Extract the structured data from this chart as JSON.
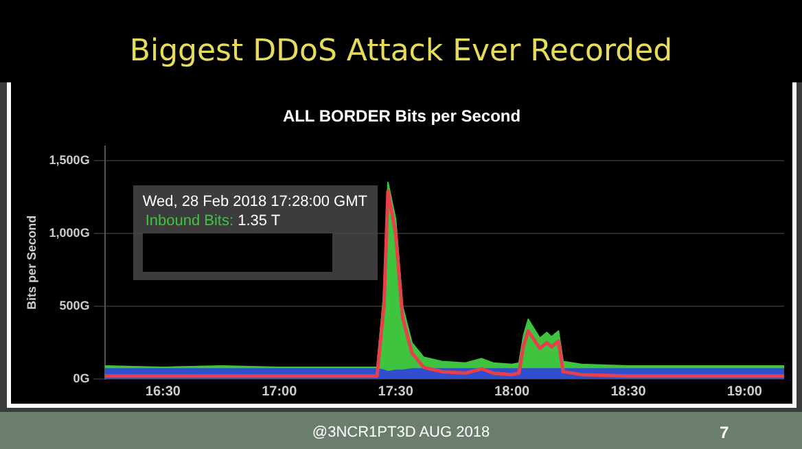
{
  "chart_data": {
    "type": "area",
    "title": "Biggest DDoS Attack Ever Recorded",
    "subtitle": "ALL BORDER Bits per Second",
    "ylabel": "Bits per Second",
    "x": [
      16.25,
      16.5,
      16.75,
      17.0,
      17.25,
      17.42,
      17.45,
      17.467,
      17.5,
      17.53,
      17.57,
      17.62,
      17.7,
      17.8,
      17.87,
      17.92,
      18.0,
      18.03,
      18.05,
      18.07,
      18.12,
      18.15,
      18.17,
      18.2,
      18.22,
      18.3,
      18.5,
      18.75,
      19.0,
      19.17
    ],
    "series": [
      {
        "color": "#3ec43e",
        "values": [
          90,
          80,
          90,
          80,
          80,
          80,
          600,
          1350,
          1100,
          500,
          250,
          150,
          120,
          110,
          140,
          110,
          100,
          110,
          300,
          410,
          280,
          320,
          290,
          330,
          120,
          100,
          90,
          90,
          90,
          90
        ]
      },
      {
        "color": "#2f4fd0",
        "values": [
          70,
          70,
          70,
          70,
          70,
          70,
          60,
          50,
          60,
          60,
          70,
          70,
          70,
          70,
          70,
          70,
          70,
          70,
          70,
          70,
          70,
          70,
          70,
          70,
          70,
          70,
          70,
          70,
          70,
          70
        ]
      },
      {
        "type": "line",
        "color": "#e8404a",
        "values": [
          20,
          20,
          20,
          20,
          20,
          20,
          500,
          1290,
          1000,
          420,
          180,
          80,
          50,
          40,
          70,
          40,
          30,
          40,
          230,
          330,
          210,
          250,
          220,
          260,
          50,
          30,
          20,
          20,
          20,
          20
        ]
      }
    ],
    "xlim": [
      16.25,
      19.17
    ],
    "xticks": [
      {
        "value": 16.5,
        "label": "16:30"
      },
      {
        "value": 17,
        "label": "17:00"
      },
      {
        "value": 17.5,
        "label": "17:30"
      },
      {
        "value": 18,
        "label": "18:00"
      },
      {
        "value": 18.5,
        "label": "18:30"
      },
      {
        "value": 19,
        "label": "19:00"
      }
    ],
    "ylim": [
      0,
      1600
    ],
    "yticks": [
      {
        "value": 0,
        "label": "0G"
      },
      {
        "value": 500,
        "label": "500G"
      },
      {
        "value": 1000,
        "label": "1,000G"
      },
      {
        "value": 1500,
        "label": "1,500G"
      }
    ],
    "grid": "y",
    "annotations": [
      {
        "text": "Wed, 28 Feb 2018 17:28:00 GMT\nInbound Bits: 1.35 T",
        "x": 17.467,
        "y": 1350
      },
      "@3NCR1PT3D  AUG 2018",
      "7"
    ]
  }
}
